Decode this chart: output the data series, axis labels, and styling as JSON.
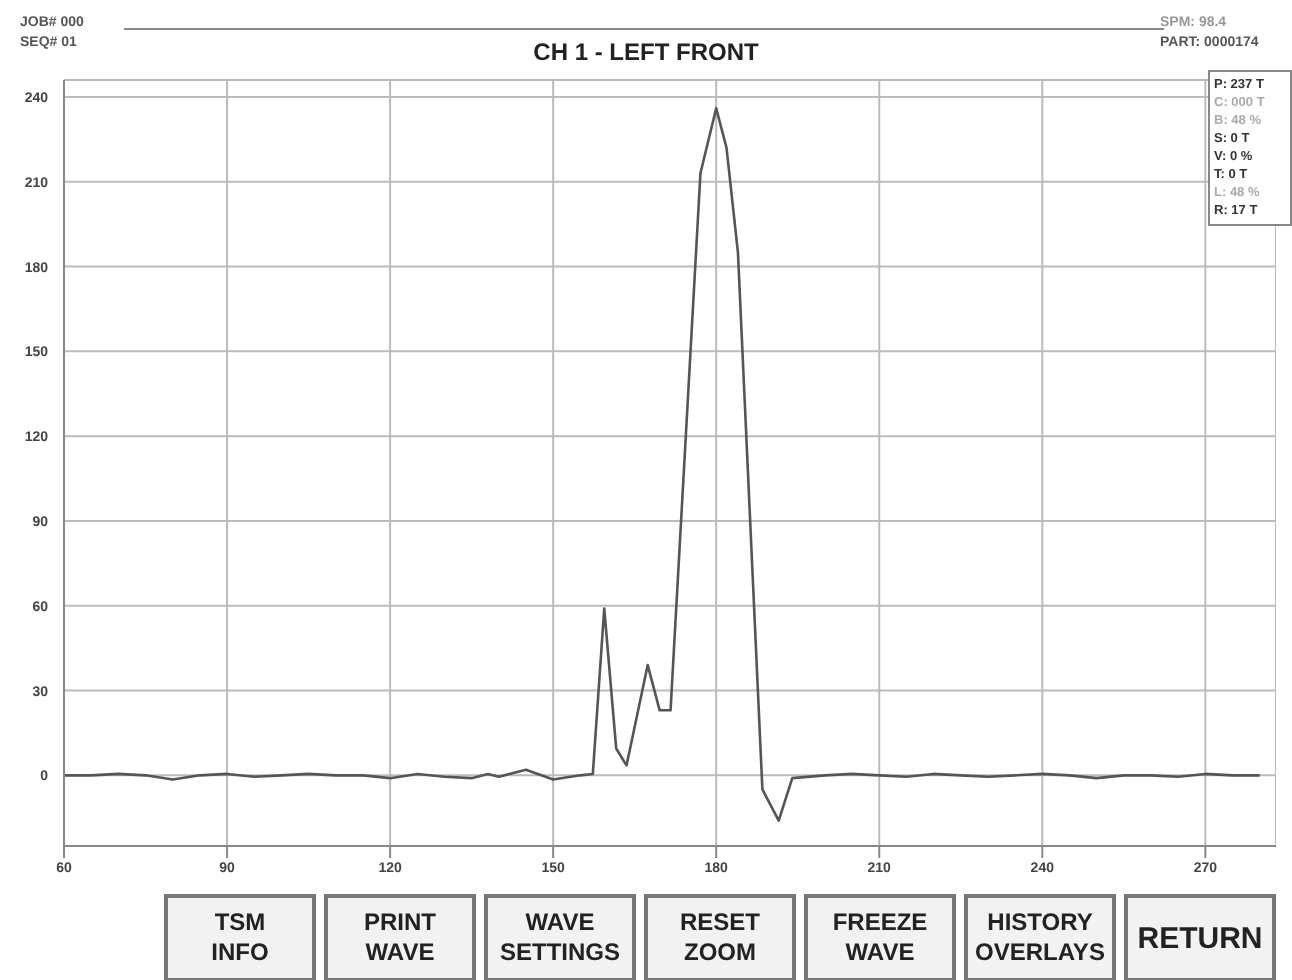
{
  "chart_data": {
    "type": "line",
    "title": "CH 1 - LEFT FRONT",
    "annotations": [
      "JOB# 000",
      "SEQ# 01",
      "SPM: 98.4",
      "PART: 0000174",
      "P: 237 T",
      "C: 000 T",
      "B: 48 %",
      "S: 0 T",
      "V: 0 %",
      "T: 0 T",
      "L: 48 %",
      "R: 17 T",
      "TSM INFO",
      "PRINT WAVE",
      "WAVE SETTINGS",
      "RESET ZOOM",
      "FREEZE WAVE",
      "HISTORY OVERLAYS",
      "RETURN"
    ],
    "series": [
      {
        "color": "#555555",
        "x": [
          60,
          65,
          70,
          75,
          80,
          85,
          90,
          95,
          100,
          105,
          110,
          115,
          120,
          125,
          130,
          135,
          138,
          140,
          145,
          150,
          155,
          157.3,
          159.4,
          161.6,
          163.5,
          167.4,
          169.6,
          171.6,
          177.1,
          180,
          181.9,
          184,
          188.5,
          191.5,
          194,
          200,
          205,
          210,
          215,
          220,
          225,
          230,
          235,
          240,
          245,
          250,
          255,
          260,
          265,
          270,
          275,
          280
        ],
        "values": [
          0,
          0,
          0.5,
          0,
          -1.5,
          0,
          0.5,
          -0.5,
          0,
          0.5,
          0,
          0,
          -1,
          0.5,
          -0.5,
          -1,
          0.5,
          -0.5,
          2,
          -1.5,
          0,
          0.5,
          59,
          9.5,
          3.5,
          39,
          23,
          23,
          213,
          236,
          222,
          185,
          -5,
          -16,
          -1,
          0,
          0.5,
          0,
          -0.5,
          0.5,
          0,
          -0.5,
          0,
          0.5,
          0,
          -1,
          0,
          0,
          -0.5,
          0.5,
          0,
          0
        ]
      }
    ],
    "xlim": [
      60,
      283
    ],
    "xticks": [
      60,
      90,
      120,
      150,
      180,
      210,
      240,
      270
    ],
    "ylim": [
      -25,
      246
    ],
    "yticks": [
      0,
      30,
      60,
      90,
      120,
      150,
      180,
      210,
      240
    ],
    "grid": true,
    "legend": false,
    "marker": "none",
    "line_style": "solid"
  }
}
